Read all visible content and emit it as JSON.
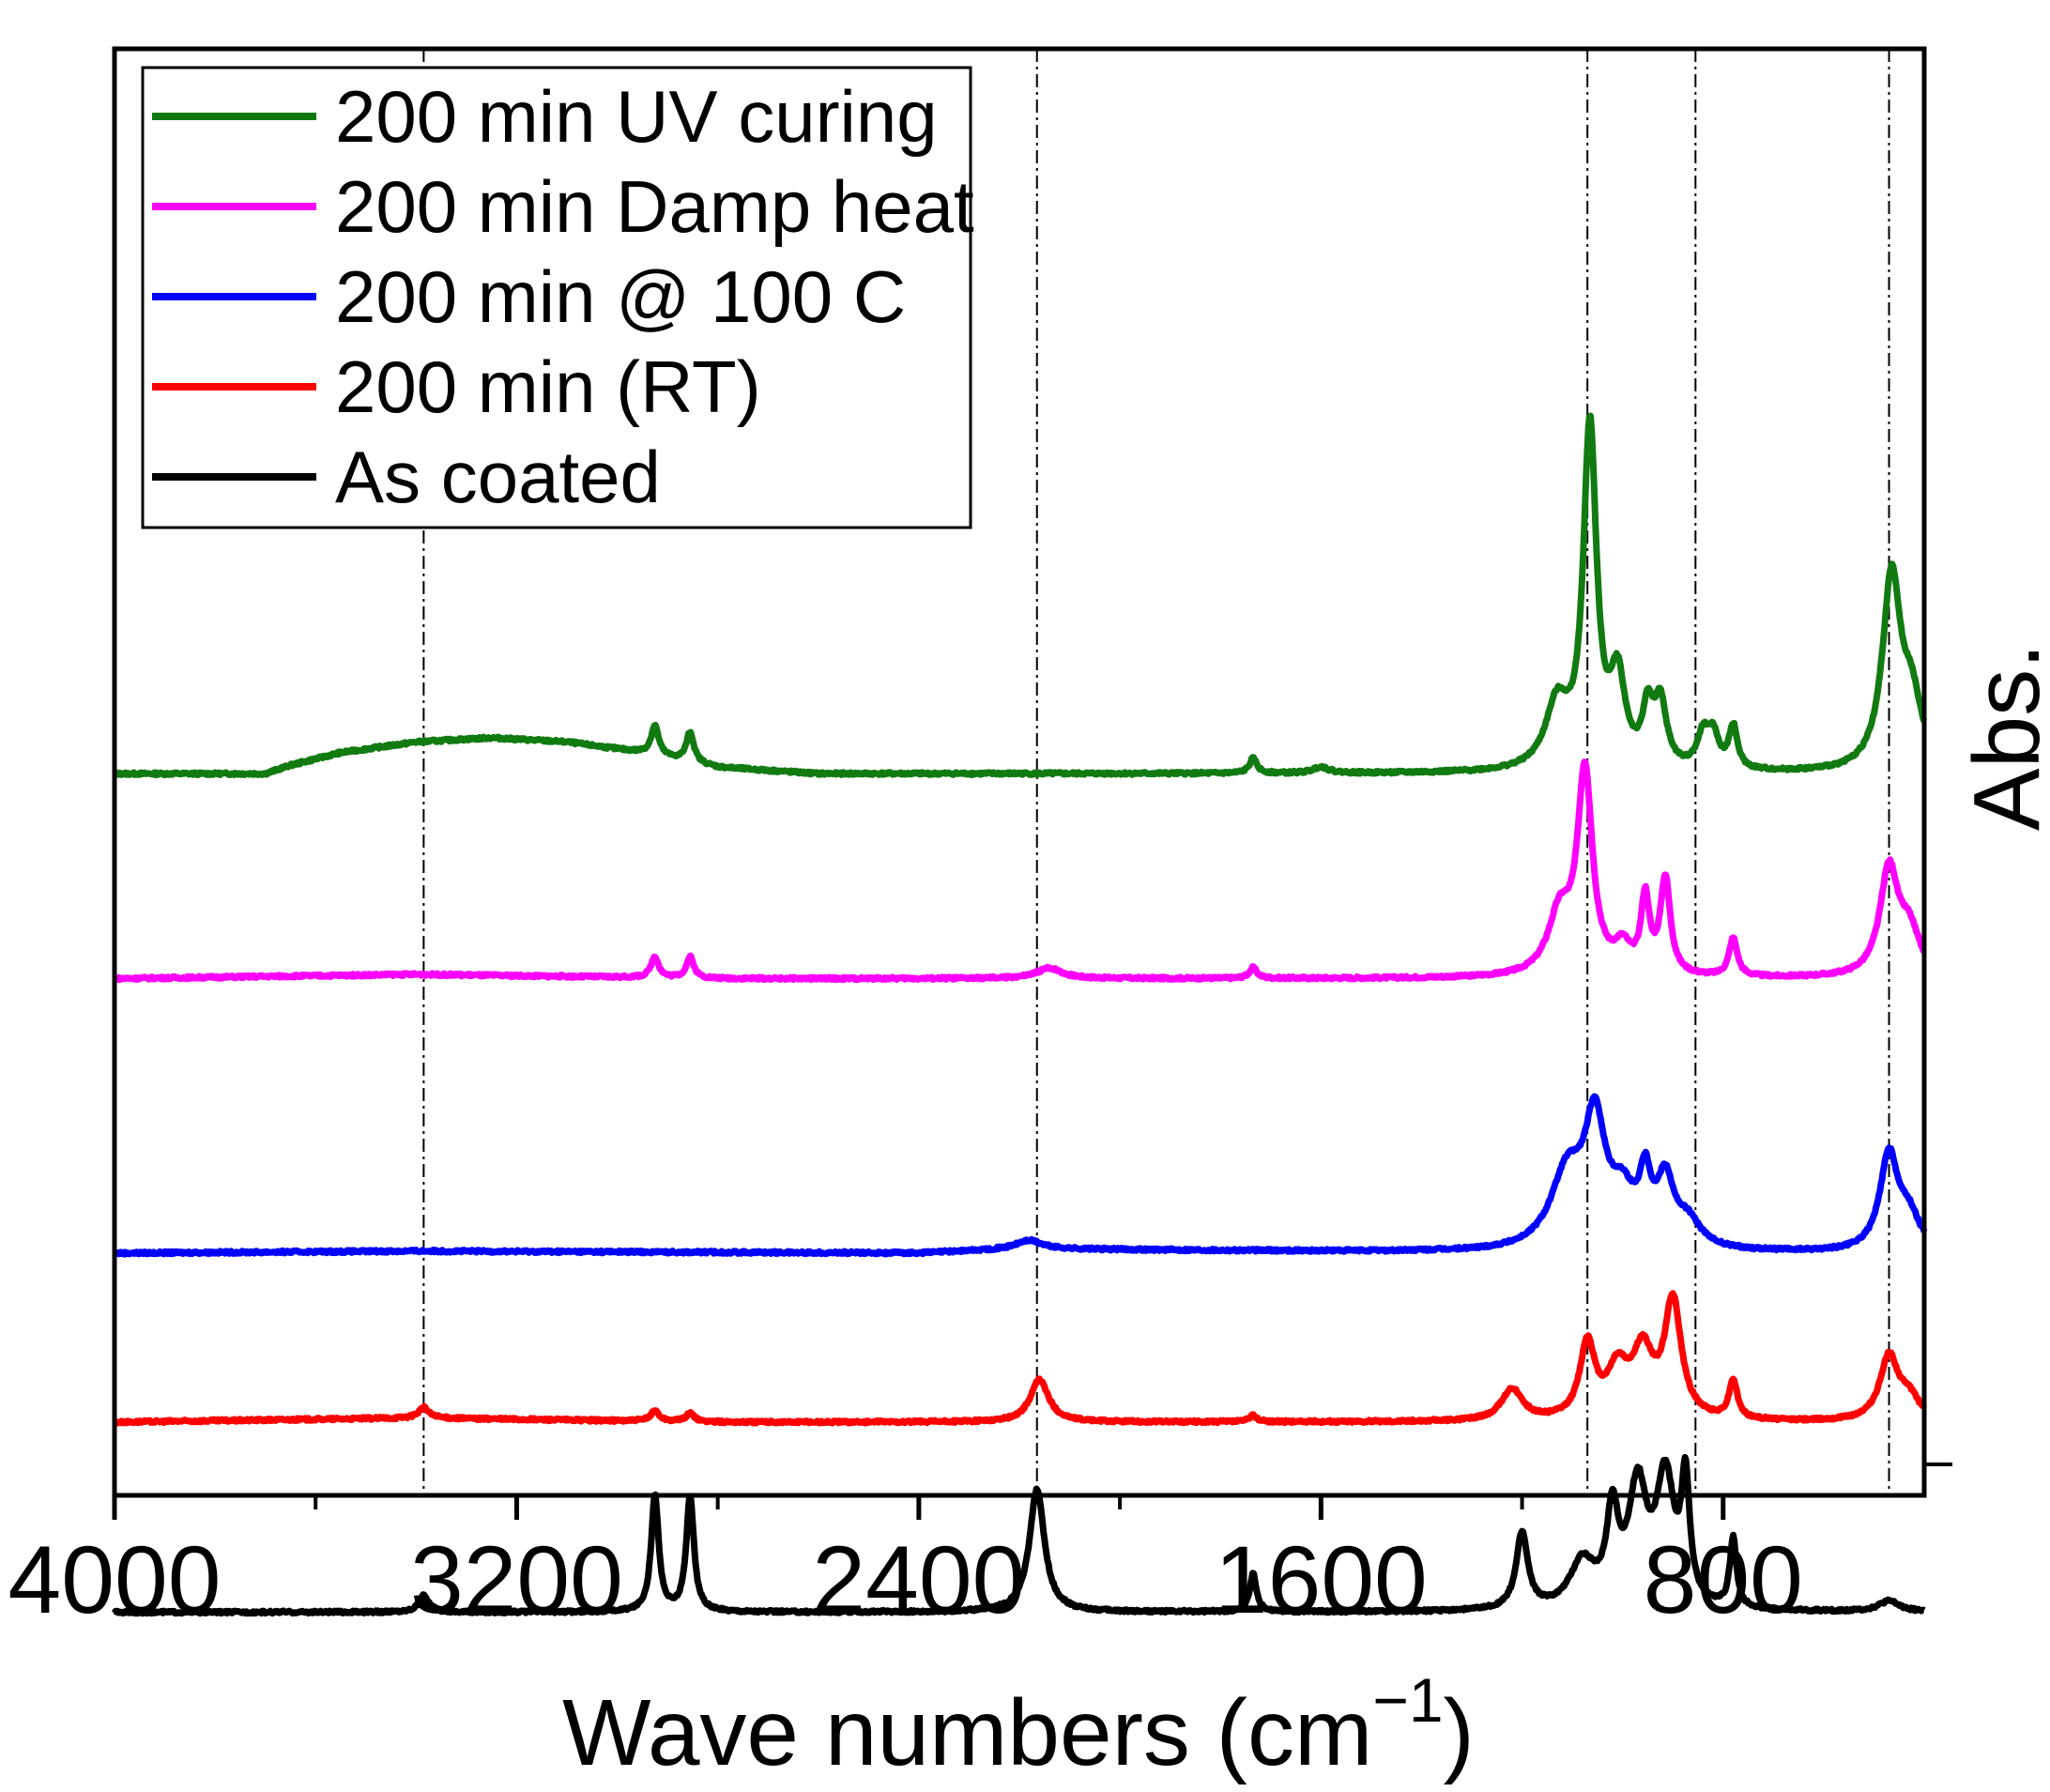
{
  "chart_data": {
    "type": "line",
    "title": "",
    "xlabel": "Wave numbers (cm",
    "xlabel_sup": "−1",
    "xlabel_close": ")",
    "ylabel": "Abs.",
    "xlim": [
      4000,
      400
    ],
    "x_ticks": [
      {
        "value": 4000,
        "label": "4000"
      },
      {
        "value": 3200,
        "label": "3200"
      },
      {
        "value": 2400,
        "label": "2400"
      },
      {
        "value": 1600,
        "label": "1600"
      },
      {
        "value": 800,
        "label": "800"
      }
    ],
    "x_minor_ticks": [
      3600,
      2800,
      2000,
      1200
    ],
    "y_ticks": [
      0
    ],
    "reference_lines": [
      3385,
      2165,
      1070,
      855,
      470
    ],
    "legend": {
      "placement": "top-left"
    },
    "series": [
      {
        "name": "200 min UV curing",
        "color": "#117a11",
        "baseline": 3.27,
        "background": [
          [
            4000,
            0
          ],
          [
            3700,
            0
          ],
          [
            3650,
            0.04
          ],
          [
            3550,
            0.1
          ],
          [
            3400,
            0.15
          ],
          [
            3250,
            0.17
          ],
          [
            3100,
            0.15
          ],
          [
            2950,
            0.1
          ],
          [
            2800,
            0.03
          ],
          [
            2600,
            0
          ],
          [
            2200,
            0
          ],
          [
            1600,
            0
          ],
          [
            1300,
            0
          ],
          [
            1200,
            0
          ]
        ],
        "peaks": [
          [
            2925,
            0.14,
            9
          ],
          [
            2855,
            0.14,
            9
          ],
          [
            1735,
            0.07,
            9
          ],
          [
            1600,
            0.03,
            18
          ],
          [
            1130,
            0.3,
            28
          ],
          [
            1065,
            1.6,
            16
          ],
          [
            1010,
            0.4,
            18
          ],
          [
            950,
            0.25,
            12
          ],
          [
            925,
            0.3,
            15
          ],
          [
            840,
            0.15,
            14
          ],
          [
            820,
            0.15,
            14
          ],
          [
            780,
            0.2,
            10
          ],
          [
            465,
            0.9,
            22
          ],
          [
            425,
            0.3,
            25
          ]
        ]
      },
      {
        "name": "200 min Damp heat",
        "color": "#ff00ff",
        "baseline": 2.3,
        "background": [
          [
            4000,
            0
          ],
          [
            3400,
            0.02
          ],
          [
            2800,
            0
          ],
          [
            1200,
            0
          ]
        ],
        "peaks": [
          [
            2925,
            0.1,
            9
          ],
          [
            2855,
            0.1,
            9
          ],
          [
            2140,
            0.05,
            30
          ],
          [
            1735,
            0.05,
            9
          ],
          [
            1125,
            0.28,
            28
          ],
          [
            1075,
            0.95,
            18
          ],
          [
            1000,
            0.12,
            20
          ],
          [
            955,
            0.35,
            10
          ],
          [
            915,
            0.45,
            12
          ],
          [
            780,
            0.18,
            10
          ],
          [
            470,
            0.5,
            22
          ],
          [
            430,
            0.2,
            25
          ]
        ]
      },
      {
        "name": "200 min @ 100 C",
        "color": "#0000ff",
        "baseline": 1.0,
        "background": [
          [
            4000,
            0
          ],
          [
            3400,
            0.01
          ],
          [
            2400,
            0
          ],
          [
            2200,
            0.02
          ],
          [
            1200,
            0
          ]
        ],
        "peaks": [
          [
            2180,
            0.04,
            30
          ],
          [
            1110,
            0.35,
            40
          ],
          [
            1055,
            0.55,
            25
          ],
          [
            1000,
            0.22,
            30
          ],
          [
            955,
            0.28,
            14
          ],
          [
            915,
            0.3,
            20
          ],
          [
            870,
            0.12,
            30
          ],
          [
            470,
            0.45,
            22
          ],
          [
            430,
            0.15,
            25
          ]
        ]
      },
      {
        "name": "200 min (RT)",
        "color": "#ff0000",
        "baseline": 0.2,
        "background": [
          [
            4000,
            0
          ],
          [
            3400,
            0.02
          ],
          [
            2800,
            0
          ],
          [
            1200,
            0
          ]
        ],
        "peaks": [
          [
            3385,
            0.05,
            12
          ],
          [
            2925,
            0.05,
            10
          ],
          [
            2855,
            0.04,
            10
          ],
          [
            2160,
            0.2,
            22
          ],
          [
            1735,
            0.03,
            9
          ],
          [
            1220,
            0.15,
            25
          ],
          [
            1070,
            0.35,
            18
          ],
          [
            1010,
            0.22,
            25
          ],
          [
            960,
            0.3,
            25
          ],
          [
            900,
            0.55,
            20
          ],
          [
            780,
            0.18,
            10
          ],
          [
            470,
            0.3,
            22
          ],
          [
            430,
            0.1,
            25
          ]
        ]
      },
      {
        "name": "As coated",
        "color": "#000000",
        "baseline": -0.7,
        "background": [
          [
            4000,
            0
          ],
          [
            1200,
            0
          ]
        ],
        "peaks": [
          [
            3385,
            0.08,
            12
          ],
          [
            2925,
            0.55,
            9
          ],
          [
            2855,
            0.55,
            9
          ],
          [
            2165,
            0.58,
            18
          ],
          [
            1735,
            0.18,
            8
          ],
          [
            1200,
            0.36,
            14
          ],
          [
            1080,
            0.22,
            30
          ],
          [
            1020,
            0.42,
            14
          ],
          [
            970,
            0.55,
            22
          ],
          [
            915,
            0.6,
            22
          ],
          [
            875,
            0.55,
            10
          ],
          [
            780,
            0.33,
            8
          ],
          [
            470,
            0.05,
            25
          ]
        ]
      }
    ]
  }
}
